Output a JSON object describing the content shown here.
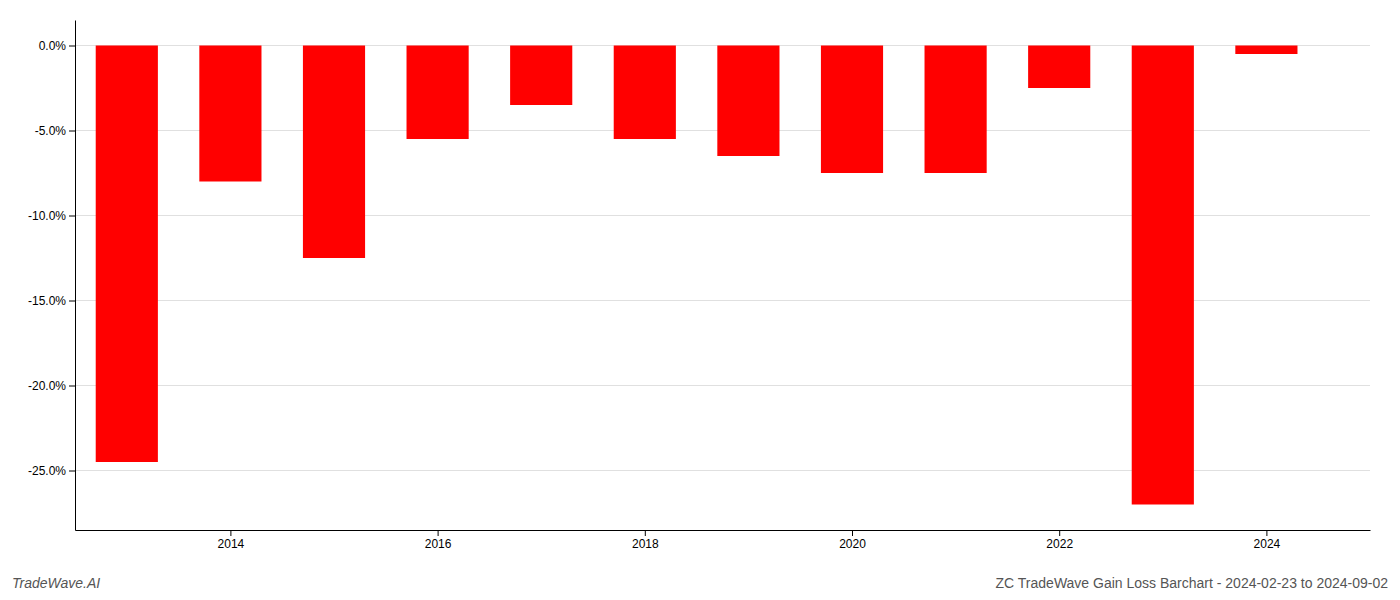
{
  "chart_data": {
    "type": "bar",
    "title": "ZC TradeWave Gain Loss Barchart - 2024-02-23 to 2024-09-02",
    "annotations": [
      "TradeWave.AI"
    ],
    "x": [
      2013,
      2014,
      2015,
      2016,
      2017,
      2018,
      2019,
      2020,
      2021,
      2022,
      2023,
      2024
    ],
    "values": [
      -24.5,
      -8.0,
      -12.5,
      -5.5,
      -3.5,
      -5.5,
      -6.5,
      -7.5,
      -7.5,
      -2.5,
      -27.0,
      -0.5
    ],
    "color": "#FF0000",
    "xlim": [
      2012.5,
      2025.0
    ],
    "xticks": [
      2014,
      2016,
      2018,
      2020,
      2022,
      2024
    ],
    "ylim": [
      -28.5,
      1.5
    ],
    "yticks": [
      {
        "value": 0.0,
        "label": "0.0%"
      },
      {
        "value": -5.0,
        "label": "-5.0%"
      },
      {
        "value": -10.0,
        "label": "-10.0%"
      },
      {
        "value": -15.0,
        "label": "-15.0%"
      },
      {
        "value": -20.0,
        "label": "-20.0%"
      },
      {
        "value": -25.0,
        "label": "-25.0%"
      }
    ],
    "grid": true
  }
}
